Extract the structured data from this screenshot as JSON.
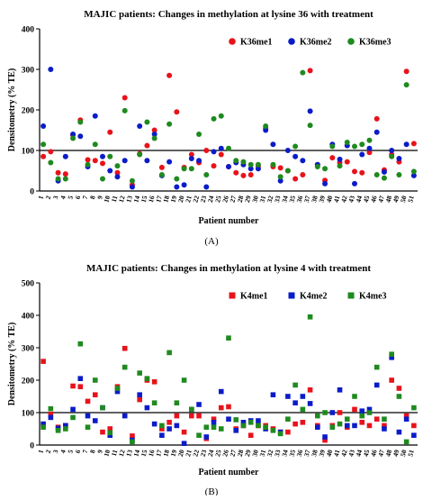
{
  "charts": [
    {
      "type": "scatter",
      "title": "MAJIC patients: Changes in methylation at lysine 36 with treatment",
      "xlabel": "Patient number",
      "ylabel": "Densitometry (% TE)",
      "ylim": [
        0,
        400
      ],
      "yticks": [
        0,
        100,
        200,
        300,
        400
      ],
      "reference_line": 100,
      "panel_label": "(A)",
      "legend_position": "top-right",
      "categories": [
        "1",
        "2",
        "3",
        "4",
        "5",
        "6",
        "7",
        "8",
        "9",
        "10",
        "11",
        "12",
        "13",
        "14",
        "15",
        "16",
        "17",
        "18",
        "19",
        "20",
        "21",
        "22",
        "23",
        "24",
        "25",
        "26",
        "27",
        "28",
        "29",
        "30",
        "31",
        "32",
        "33",
        "34",
        "35",
        "36",
        "37",
        "38",
        "39",
        "40",
        "41",
        "42",
        "43",
        "44",
        "45",
        "46",
        "47",
        "48",
        "49",
        "50",
        "51"
      ],
      "series": [
        {
          "name": "K36me1",
          "color": "#e8121b",
          "values": [
            85,
            97,
            45,
            42,
            138,
            175,
            77,
            75,
            68,
            145,
            45,
            230,
            15,
            92,
            112,
            150,
            58,
            285,
            195,
            58,
            90,
            70,
            100,
            62,
            90,
            60,
            45,
            38,
            40,
            62,
            155,
            60,
            57,
            50,
            30,
            40,
            297,
            65,
            26,
            82,
            70,
            72,
            48,
            45,
            95,
            178,
            52,
            90,
            72,
            295,
            117
          ]
        },
        {
          "name": "K36me2",
          "color": "#0a1cc8",
          "values": [
            160,
            300,
            25,
            85,
            140,
            135,
            60,
            185,
            85,
            50,
            35,
            75,
            10,
            160,
            75,
            140,
            38,
            72,
            10,
            15,
            80,
            75,
            10,
            97,
            105,
            60,
            70,
            65,
            55,
            55,
            150,
            115,
            25,
            100,
            85,
            75,
            197,
            65,
            18,
            115,
            78,
            112,
            18,
            90,
            105,
            145,
            47,
            100,
            80,
            115,
            38
          ]
        },
        {
          "name": "K36me3",
          "color": "#1f8a1f",
          "values": [
            115,
            70,
            30,
            30,
            130,
            170,
            65,
            115,
            30,
            85,
            62,
            198,
            25,
            90,
            170,
            130,
            40,
            165,
            30,
            55,
            55,
            140,
            40,
            178,
            185,
            105,
            75,
            72,
            65,
            65,
            160,
            65,
            35,
            50,
            110,
            292,
            162,
            60,
            55,
            110,
            62,
            120,
            110,
            115,
            125,
            40,
            32,
            85,
            40,
            262,
            48
          ]
        }
      ]
    },
    {
      "type": "scatter",
      "title": "MAJIC patients: Changes in methylation at lysine 4 with treatment",
      "xlabel": "Patient number",
      "ylabel": "Densitometry (% TE)",
      "ylim": [
        0,
        500
      ],
      "yticks": [
        0,
        100,
        200,
        300,
        400,
        500
      ],
      "reference_line": 100,
      "panel_label": "(B)",
      "legend_position": "top-right",
      "categories": [
        "1",
        "2",
        "3",
        "4",
        "5",
        "6",
        "7",
        "8",
        "9",
        "10",
        "11",
        "12",
        "13",
        "14",
        "15",
        "16",
        "17",
        "18",
        "19",
        "20",
        "21",
        "22",
        "23",
        "24",
        "25",
        "26",
        "27",
        "28",
        "29",
        "30",
        "31",
        "32",
        "33",
        "34",
        "35",
        "36",
        "37",
        "38",
        "39",
        "40",
        "41",
        "42",
        "43",
        "44",
        "45",
        "46",
        "47",
        "48",
        "49",
        "50",
        "51"
      ],
      "series": [
        {
          "name": "K4me1",
          "color": "#e8121b",
          "values": [
            258,
            95,
            55,
            60,
            182,
            180,
            135,
            155,
            40,
            50,
            180,
            298,
            28,
            140,
            200,
            195,
            50,
            70,
            90,
            40,
            90,
            90,
            20,
            80,
            115,
            118,
            50,
            60,
            30,
            60,
            60,
            50,
            40,
            40,
            65,
            70,
            170,
            60,
            15,
            60,
            100,
            55,
            110,
            70,
            60,
            80,
            60,
            200,
            175,
            90,
            60
          ]
        },
        {
          "name": "K4me2",
          "color": "#0a1cc8",
          "values": [
            65,
            85,
            52,
            60,
            110,
            205,
            90,
            75,
            115,
            30,
            165,
            90,
            15,
            155,
            115,
            65,
            30,
            50,
            60,
            5,
            110,
            125,
            25,
            70,
            165,
            80,
            45,
            70,
            75,
            75,
            50,
            155,
            40,
            150,
            130,
            150,
            128,
            55,
            25,
            100,
            170,
            60,
            60,
            105,
            110,
            185,
            50,
            270,
            40,
            80,
            30
          ]
        },
        {
          "name": "K4me3",
          "color": "#1f8a1f",
          "values": [
            55,
            112,
            45,
            50,
            85,
            312,
            55,
            200,
            115,
            38,
            175,
            240,
            10,
            222,
            205,
            130,
            60,
            285,
            130,
            200,
            110,
            30,
            55,
            55,
            50,
            330,
            78,
            60,
            70,
            60,
            55,
            45,
            35,
            80,
            185,
            110,
            395,
            90,
            100,
            55,
            65,
            80,
            150,
            90,
            100,
            240,
            80,
            280,
            150,
            10,
            115
          ]
        }
      ]
    }
  ]
}
